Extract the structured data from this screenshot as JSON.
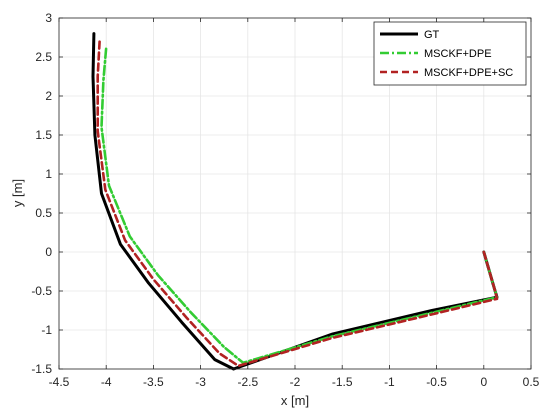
{
  "chart_data": {
    "type": "line",
    "title": "",
    "xlabel": "x [m]",
    "ylabel": "y [m]",
    "xlim": [
      -4.5,
      0.5
    ],
    "ylim": [
      -1.5,
      3
    ],
    "x_ticks": [
      -4.5,
      -4,
      -3.5,
      -3,
      -2.5,
      -2,
      -1.5,
      -1,
      -0.5,
      0,
      0.5
    ],
    "y_ticks": [
      -1.5,
      -1,
      -0.5,
      0,
      0.5,
      1,
      1.5,
      2,
      2.5,
      3
    ],
    "x_tick_labels": [
      "-4.5",
      "-4",
      "-3.5",
      "-3",
      "-2.5",
      "-2",
      "-1.5",
      "-1",
      "-0.5",
      "0",
      "0.5"
    ],
    "y_tick_labels": [
      "-1.5",
      "-1",
      "-0.5",
      "0",
      "0.5",
      "1",
      "1.5",
      "2",
      "2.5",
      "3"
    ],
    "grid": true,
    "legend_position": "top-right",
    "series": [
      {
        "name": "GT",
        "color": "#000000",
        "style": "solid",
        "x": [
          0.0,
          0.12,
          0.14,
          -0.55,
          -1.6,
          -2.65,
          -2.85,
          -3.2,
          -3.55,
          -3.85,
          -4.05,
          -4.12,
          -4.14,
          -4.13
        ],
        "y": [
          0.0,
          -0.5,
          -0.58,
          -0.75,
          -1.05,
          -1.5,
          -1.38,
          -0.9,
          -0.4,
          0.1,
          0.75,
          1.5,
          2.25,
          2.8
        ]
      },
      {
        "name": "MSCKF+DPE",
        "color": "#33cc33",
        "style": "dashdot",
        "x": [
          0.0,
          0.12,
          0.14,
          -0.55,
          -1.6,
          -2.55,
          -2.75,
          -3.1,
          -3.45,
          -3.75,
          -3.97,
          -4.05,
          -4.03,
          -4.0
        ],
        "y": [
          0.0,
          -0.5,
          -0.58,
          -0.78,
          -1.08,
          -1.42,
          -1.22,
          -0.78,
          -0.3,
          0.2,
          0.85,
          1.6,
          2.2,
          2.62
        ]
      },
      {
        "name": "MSCKF+DPE+SC",
        "color": "#b22222",
        "style": "dashed",
        "x": [
          0.0,
          0.12,
          0.14,
          -0.55,
          -1.6,
          -2.6,
          -2.8,
          -3.15,
          -3.5,
          -3.8,
          -4.01,
          -4.09,
          -4.09,
          -4.07
        ],
        "y": [
          0.0,
          -0.5,
          -0.6,
          -0.8,
          -1.1,
          -1.46,
          -1.3,
          -0.84,
          -0.35,
          0.15,
          0.8,
          1.55,
          2.25,
          2.7
        ]
      }
    ]
  }
}
